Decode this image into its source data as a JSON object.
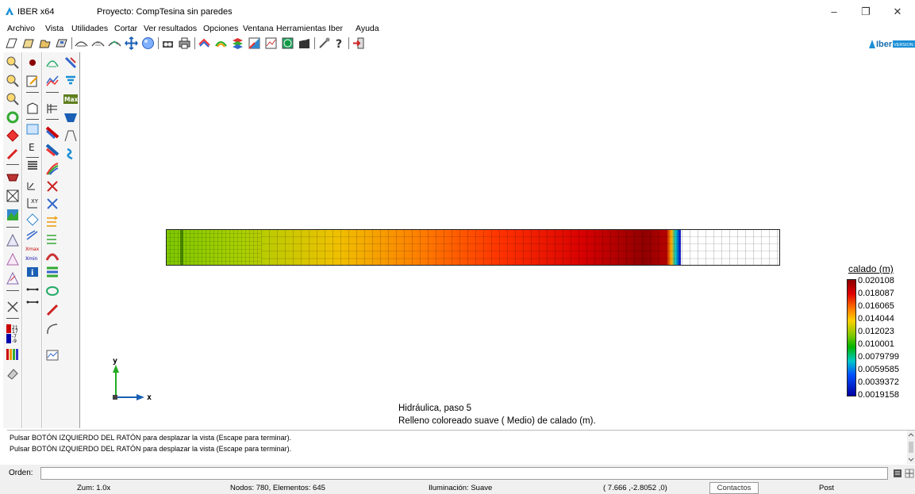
{
  "titlebar": {
    "app_name": "IBER x64",
    "project_title": "Proyecto: CompTesina sin paredes",
    "minimize": "–",
    "maximize": "❐",
    "close": "✕"
  },
  "menu": [
    "Archivo",
    "Vista",
    "Utilidades",
    "Cortar",
    "Ver resultados",
    "Opciones",
    "Ventana",
    "Herramientas Iber",
    "Ayuda"
  ],
  "toolbar": {
    "icons": [
      "new-file-icon",
      "open-file-icon",
      "open-folder-icon",
      "save-icon",
      "surface-icon",
      "mesh-icon",
      "move-icon",
      "pan-icon",
      "sphere-icon",
      "layers-icon",
      "print-icon",
      "rainbow-icon",
      "contours-icon",
      "stack-icon",
      "colorfill-icon",
      "graph-icon",
      "globe-icon",
      "clapper-icon",
      "tool-icon",
      "help-icon",
      "exit-icon"
    ]
  },
  "palette": {
    "small_numbers": [
      "21",
      "17",
      "-7",
      "-9"
    ],
    "max_label": "Max",
    "xmax_label": "Xmax",
    "xmin_label": "Xmin"
  },
  "viewport": {
    "info_line1": "Hidráulica, paso 5",
    "info_line2": "Relleno coloreado suave ( Medio) de calado (m).",
    "axis_x": "x",
    "axis_y": "y"
  },
  "legend": {
    "title": "calado (m)",
    "values": [
      "0.020108",
      "0.018087",
      "0.016065",
      "0.014044",
      "0.012023",
      "0.010001",
      "0.0079799",
      "0.0059585",
      "0.0039372",
      "0.0019158"
    ],
    "colors": [
      "#8b0000",
      "#e00000",
      "#ff7a00",
      "#ffd000",
      "#7ec800",
      "#00b400",
      "#00c8c8",
      "#0050ff",
      "#0000a0"
    ]
  },
  "console": {
    "lines": [
      "Pulsar BOTÓN IZQUIERDO DEL RATÓN  para desplazar la vista (Escape para terminar).",
      "Pulsar BOTÓN IZQUIERDO DEL RATÓN  para desplazar la vista (Escape para terminar)."
    ]
  },
  "order": {
    "label": "Orden:",
    "value": ""
  },
  "status": {
    "zoom": "Zum: 1.0x",
    "nodes": "Nodos: 780, Elementos: 645",
    "lighting": "Iluminación: Suave",
    "coords": "( 7.666 ,-2.8052 ,0)",
    "contacts": "Contactos",
    "mode": "Post"
  },
  "logo": {
    "name": "Iber",
    "version": "VERSION 3"
  }
}
